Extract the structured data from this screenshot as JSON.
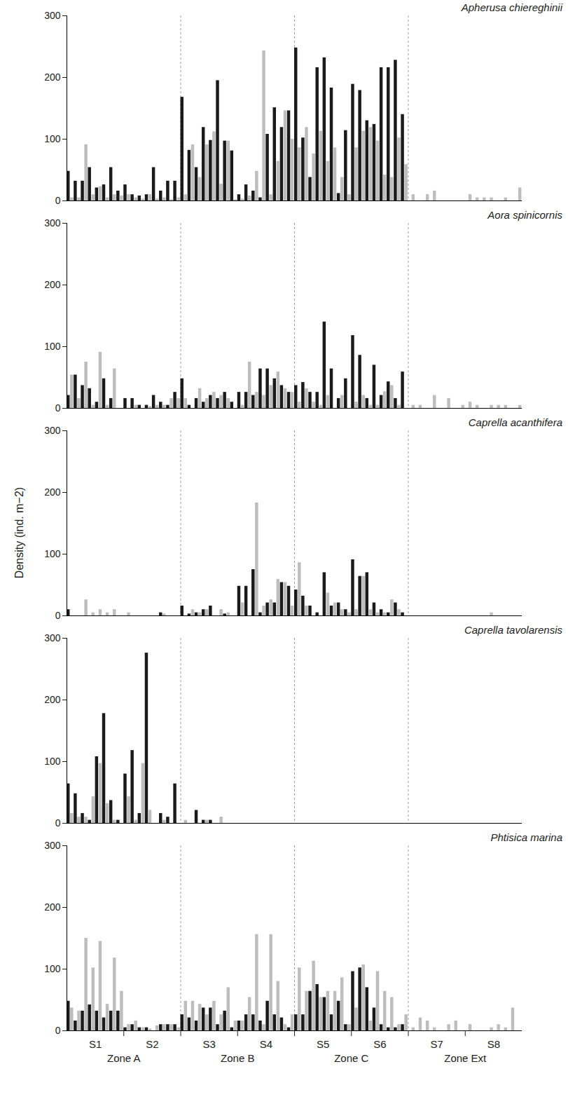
{
  "ylabel": "Density (ind. m−2)",
  "sites": [
    "S1",
    "S2",
    "S3",
    "S4",
    "S5",
    "S6",
    "S7",
    "S8"
  ],
  "zones": [
    {
      "label": "Zone A",
      "sites": [
        "S1",
        "S2"
      ]
    },
    {
      "label": "Zone B",
      "sites": [
        "S3",
        "S4"
      ]
    },
    {
      "label": "Zone C",
      "sites": [
        "S5",
        "S6"
      ]
    },
    {
      "label": "Zone Ext",
      "sites": [
        "S7",
        "S8"
      ]
    }
  ],
  "chart_data": [
    {
      "type": "bar",
      "title": "Apherusa chiereghinii",
      "ylim": [
        0,
        300
      ],
      "yticks": [
        0,
        100,
        200,
        300
      ],
      "series": [
        {
          "color": "#1a1a1a",
          "values": [
            48,
            32,
            32,
            54,
            21,
            26,
            54,
            16,
            26,
            10,
            8,
            10,
            54,
            16,
            32,
            32,
            168,
            82,
            54,
            119,
            98,
            195,
            97,
            81,
            10,
            26,
            16,
            5,
            108,
            151,
            119,
            146,
            248,
            102,
            38,
            216,
            232,
            183,
            12,
            114,
            189,
            179,
            130,
            124,
            216,
            216,
            228,
            140,
            0,
            0,
            0,
            0,
            0,
            0,
            0,
            0,
            0,
            0,
            0,
            0,
            0,
            0,
            0,
            0
          ]
        },
        {
          "color": "#bdbdbd",
          "values": [
            5,
            5,
            91,
            10,
            23,
            5,
            10,
            8,
            10,
            5,
            3,
            10,
            3,
            5,
            2,
            5,
            10,
            91,
            38,
            91,
            112,
            27,
            97,
            2,
            3,
            8,
            48,
            243,
            10,
            64,
            146,
            100,
            86,
            119,
            76,
            113,
            64,
            86,
            38,
            10,
            86,
            113,
            119,
            97,
            42,
            38,
            102,
            59,
            10,
            0,
            10,
            16,
            0,
            0,
            0,
            0,
            10,
            5,
            5,
            5,
            0,
            5,
            0,
            21
          ]
        }
      ]
    },
    {
      "type": "bar",
      "title": "Aora spinicornis",
      "ylim": [
        0,
        300
      ],
      "yticks": [
        0,
        100,
        200,
        300
      ],
      "series": [
        {
          "color": "#1a1a1a",
          "values": [
            21,
            54,
            37,
            32,
            10,
            48,
            16,
            0,
            16,
            16,
            5,
            5,
            21,
            10,
            5,
            26,
            48,
            5,
            16,
            10,
            21,
            16,
            26,
            10,
            26,
            26,
            21,
            64,
            64,
            48,
            37,
            26,
            37,
            42,
            26,
            26,
            140,
            64,
            16,
            48,
            118,
            86,
            16,
            70,
            21,
            43,
            16,
            59,
            0,
            0,
            0,
            0,
            0,
            0,
            0,
            0,
            0,
            0,
            0,
            0,
            0,
            0,
            0,
            0
          ]
        },
        {
          "color": "#bdbdbd",
          "values": [
            54,
            16,
            75,
            5,
            91,
            5,
            64,
            0,
            0,
            5,
            0,
            3,
            5,
            5,
            16,
            16,
            16,
            0,
            32,
            16,
            26,
            21,
            16,
            0,
            5,
            75,
            26,
            21,
            37,
            59,
            32,
            26,
            10,
            32,
            10,
            5,
            21,
            0,
            21,
            0,
            10,
            21,
            5,
            5,
            27,
            37,
            5,
            0,
            5,
            5,
            0,
            21,
            0,
            16,
            0,
            5,
            10,
            5,
            0,
            5,
            5,
            5,
            0,
            5
          ]
        }
      ]
    },
    {
      "type": "bar",
      "title": "Caprella acanthifera",
      "ylim": [
        0,
        300
      ],
      "yticks": [
        0,
        100,
        200,
        300
      ],
      "series": [
        {
          "color": "#1a1a1a",
          "values": [
            10,
            0,
            0,
            0,
            0,
            0,
            0,
            0,
            0,
            0,
            0,
            0,
            0,
            5,
            0,
            0,
            16,
            3,
            5,
            10,
            16,
            0,
            3,
            0,
            48,
            48,
            75,
            5,
            21,
            21,
            54,
            48,
            42,
            32,
            16,
            5,
            70,
            16,
            21,
            10,
            91,
            64,
            70,
            21,
            10,
            5,
            21,
            5,
            0,
            0,
            0,
            0,
            0,
            0,
            0,
            0,
            0,
            0,
            0,
            0,
            0,
            0,
            0,
            0
          ]
        },
        {
          "color": "#bdbdbd",
          "values": [
            0,
            0,
            26,
            5,
            10,
            5,
            10,
            0,
            5,
            0,
            0,
            0,
            0,
            3,
            0,
            0,
            0,
            10,
            5,
            10,
            0,
            10,
            5,
            0,
            21,
            0,
            183,
            16,
            26,
            59,
            54,
            16,
            86,
            16,
            0,
            0,
            37,
            21,
            10,
            5,
            10,
            64,
            10,
            5,
            5,
            26,
            10,
            0,
            0,
            0,
            0,
            0,
            0,
            0,
            0,
            0,
            0,
            0,
            0,
            5,
            0,
            0,
            0,
            0
          ]
        }
      ]
    },
    {
      "type": "bar",
      "title": "Caprella tavolarensis",
      "ylim": [
        0,
        300
      ],
      "yticks": [
        0,
        100,
        200,
        300
      ],
      "series": [
        {
          "color": "#1a1a1a",
          "values": [
            64,
            48,
            16,
            5,
            108,
            178,
            37,
            5,
            80,
            118,
            16,
            276,
            0,
            16,
            10,
            64,
            0,
            0,
            21,
            5,
            5,
            0,
            0,
            0,
            0,
            0,
            0,
            0,
            0,
            0,
            0,
            0,
            0,
            0,
            0,
            0,
            0,
            0,
            0,
            0,
            0,
            0,
            0,
            0,
            0,
            0,
            0,
            0,
            0,
            0,
            0,
            0,
            0,
            0,
            0,
            0,
            0,
            0,
            0,
            0,
            0,
            0,
            0,
            0
          ]
        },
        {
          "color": "#bdbdbd",
          "values": [
            16,
            10,
            10,
            43,
            97,
            32,
            5,
            0,
            43,
            5,
            97,
            21,
            0,
            5,
            0,
            0,
            5,
            0,
            0,
            5,
            0,
            10,
            0,
            0,
            0,
            0,
            0,
            0,
            0,
            0,
            0,
            0,
            0,
            0,
            0,
            0,
            0,
            0,
            0,
            0,
            0,
            0,
            0,
            0,
            0,
            0,
            0,
            0,
            0,
            0,
            0,
            0,
            0,
            0,
            0,
            0,
            0,
            0,
            0,
            0,
            0,
            0,
            0,
            0
          ]
        }
      ]
    },
    {
      "type": "bar",
      "title": "Phtisica marina",
      "ylim": [
        0,
        300
      ],
      "yticks": [
        0,
        100,
        200,
        300
      ],
      "series": [
        {
          "color": "#1a1a1a",
          "values": [
            48,
            16,
            32,
            42,
            32,
            21,
            32,
            32,
            5,
            10,
            5,
            5,
            0,
            10,
            10,
            10,
            26,
            21,
            16,
            37,
            37,
            10,
            32,
            5,
            16,
            26,
            26,
            16,
            48,
            26,
            21,
            5,
            26,
            26,
            64,
            75,
            54,
            26,
            48,
            10,
            96,
            102,
            70,
            37,
            10,
            5,
            5,
            10,
            0,
            0,
            0,
            0,
            0,
            0,
            0,
            0,
            0,
            0,
            0,
            0,
            0,
            0,
            0,
            0
          ]
        },
        {
          "color": "#bdbdbd",
          "values": [
            37,
            32,
            150,
            102,
            145,
            43,
            118,
            64,
            10,
            16,
            5,
            3,
            8,
            10,
            10,
            5,
            48,
            48,
            43,
            26,
            48,
            26,
            70,
            16,
            16,
            54,
            156,
            10,
            156,
            80,
            10,
            26,
            102,
            64,
            113,
            54,
            64,
            64,
            86,
            10,
            37,
            107,
            16,
            96,
            64,
            54,
            10,
            26,
            5,
            21,
            16,
            5,
            0,
            10,
            16,
            0,
            10,
            0,
            0,
            5,
            10,
            5,
            37,
            0
          ]
        }
      ]
    }
  ]
}
